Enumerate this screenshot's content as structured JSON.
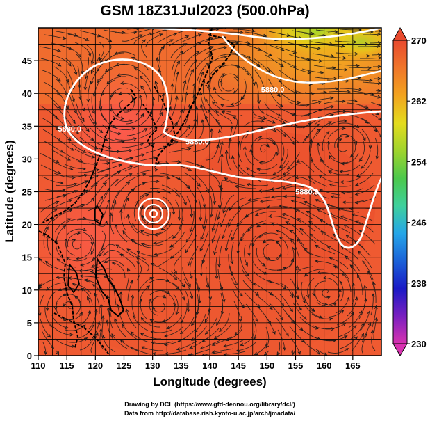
{
  "title": "GSM 18Z31Jul2023 (500.0hPa)",
  "map": {
    "xlabel": "Longitude (degrees)",
    "ylabel": "Latitude  (degrees)",
    "lon_range": [
      110,
      170
    ],
    "lat_range": [
      0,
      50
    ],
    "lon_ticks": [
      "110",
      "115",
      "120",
      "125",
      "130",
      "135",
      "140",
      "145",
      "150",
      "155",
      "160",
      "165"
    ],
    "lat_ticks": [
      "0",
      "5",
      "10",
      "15",
      "20",
      "25",
      "30",
      "35",
      "40",
      "45"
    ],
    "grid": true,
    "field": "temperature (K), 500.0hPa",
    "overlays": [
      "streamlines",
      "geopotential height contours",
      "coastlines"
    ],
    "contour_labels": [
      {
        "text": "5880.0",
        "lon": 151,
        "lat": 40.2
      },
      {
        "text": "5880.0",
        "lon": 115.5,
        "lat": 34.2
      },
      {
        "text": "5880.0",
        "lon": 137.8,
        "lat": 32.2
      },
      {
        "text": "5880.0",
        "lon": 157,
        "lat": 24.6
      }
    ],
    "colorbar": {
      "min": 230,
      "max": 270,
      "tick_labels": [
        "270",
        "262",
        "254",
        "246",
        "238",
        "230"
      ],
      "colors": [
        "#d833b0",
        "#7a1fc0",
        "#1a1ac6",
        "#1b62d8",
        "#25a6e8",
        "#3ed09c",
        "#4cc84c",
        "#9fd42d",
        "#e4dc1e",
        "#f2a41f",
        "#f0762a",
        "#e84a2e"
      ]
    }
  },
  "credits": [
    "Drawing by DCL (https://www.gfd-dennou.org/library/dcl/)",
    "Data from http://database.rish.kyoto-u.ac.jp/arch/jmadata/"
  ]
}
